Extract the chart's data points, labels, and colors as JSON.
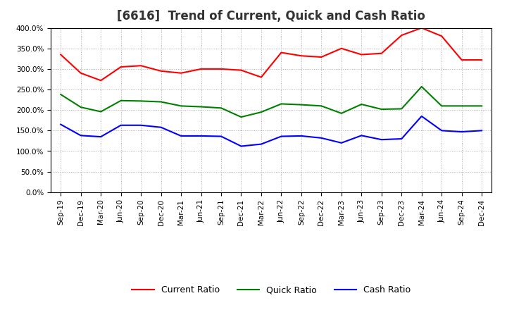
{
  "title": "[6616]  Trend of Current, Quick and Cash Ratio",
  "x_labels": [
    "Sep-19",
    "Dec-19",
    "Mar-20",
    "Jun-20",
    "Sep-20",
    "Dec-20",
    "Mar-21",
    "Jun-21",
    "Sep-21",
    "Dec-21",
    "Mar-22",
    "Jun-22",
    "Sep-22",
    "Dec-22",
    "Mar-23",
    "Jun-23",
    "Sep-23",
    "Dec-23",
    "Mar-24",
    "Jun-24",
    "Sep-24",
    "Dec-24"
  ],
  "current_ratio": [
    335,
    290,
    272,
    305,
    308,
    295,
    290,
    300,
    300,
    297,
    280,
    340,
    332,
    329,
    350,
    335,
    338,
    382,
    400,
    380,
    322,
    322
  ],
  "quick_ratio": [
    238,
    207,
    196,
    223,
    222,
    220,
    210,
    208,
    205,
    183,
    195,
    215,
    213,
    210,
    192,
    214,
    202,
    203,
    257,
    210,
    210,
    210
  ],
  "cash_ratio": [
    165,
    138,
    135,
    163,
    163,
    158,
    137,
    137,
    136,
    112,
    117,
    136,
    137,
    132,
    120,
    138,
    128,
    130,
    185,
    150,
    147,
    150
  ],
  "ylim": [
    0,
    400
  ],
  "ytick_vals": [
    0,
    50,
    100,
    150,
    200,
    250,
    300,
    350,
    400
  ],
  "line_colors": {
    "current": "#ff0000",
    "quick": "#008000",
    "cash": "#0000ff"
  },
  "bg_color": "#ffffff",
  "plot_bg_color": "#ffffff",
  "grid_color": "#aaaaaa",
  "title_color": "#333333",
  "title_fontsize": 12,
  "tick_fontsize": 7.5,
  "legend_labels": [
    "Current Ratio",
    "Quick Ratio",
    "Cash Ratio"
  ]
}
